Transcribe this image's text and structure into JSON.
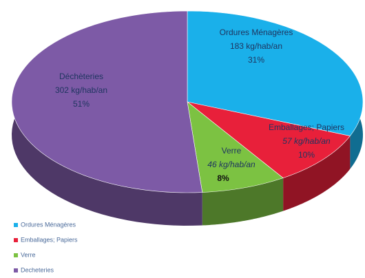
{
  "chart_data": {
    "type": "pie",
    "categories": [
      "Ordures Ménagères",
      "Emballages; Papiers",
      "Verre",
      "Decheteries"
    ],
    "slice_names": [
      "Ordures Ménagères",
      "Emballages; Papiers",
      "Verre",
      "Déchèteries"
    ],
    "values": [
      183,
      57,
      46,
      302
    ],
    "value_labels": [
      "183 kg/hab/an",
      "57 kg/hab/an",
      "46 kg/hab/an",
      "302 kg/hab/an"
    ],
    "percentages": [
      31,
      10,
      8,
      51
    ],
    "percentage_labels": [
      "31%",
      "10%",
      "8%",
      "51%"
    ],
    "colors": [
      "#1ab0ea",
      "#e8203a",
      "#7cc242",
      "#7d5aa6"
    ],
    "legend": "bottom-left"
  }
}
